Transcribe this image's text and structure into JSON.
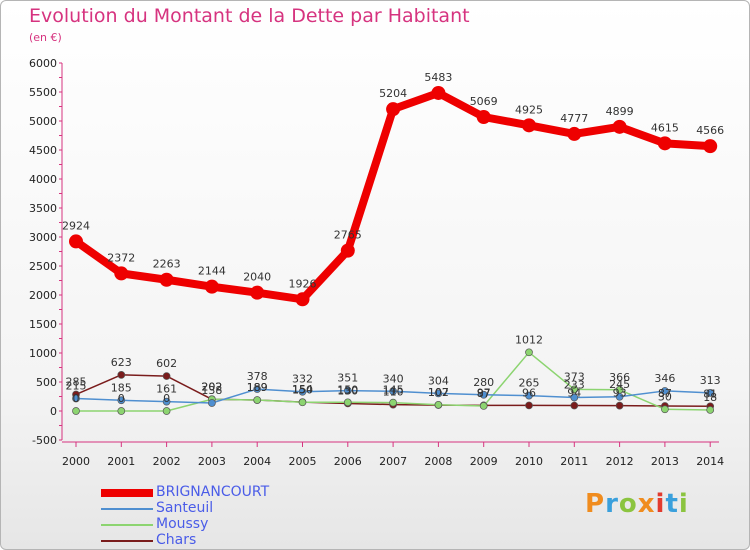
{
  "header": {
    "title": "Evolution du Montant de la Dette par Habitant",
    "unit": "(en €)"
  },
  "logo": {
    "text": "Proxiti",
    "colors": [
      "#f08c1e",
      "#3aa0dc",
      "#8bc43f",
      "#f08c1e",
      "#e23b2e",
      "#3aa0dc",
      "#8bc43f"
    ]
  },
  "chart_data": {
    "type": "line",
    "title": "Evolution du Montant de la Dette par Habitant",
    "ylabel": "(en €)",
    "xlabel": "",
    "ylim": [
      -500,
      6000
    ],
    "yticks": [
      -500,
      0,
      500,
      1000,
      1500,
      2000,
      2500,
      3000,
      3500,
      4000,
      4500,
      5000,
      5500,
      6000
    ],
    "categories": [
      "2000",
      "2001",
      "2002",
      "2003",
      "2004",
      "2005",
      "2006",
      "2007",
      "2008",
      "2009",
      "2010",
      "2011",
      "2012",
      "2013",
      "2014"
    ],
    "grid": false,
    "legend": "bottom-left",
    "series": [
      {
        "name": "BRIGNANCOURT",
        "color": "#ee0000",
        "values": [
          2924,
          2372,
          2263,
          2144,
          2040,
          1926,
          2765,
          5204,
          5483,
          5069,
          4925,
          4777,
          4899,
          4615,
          4566
        ]
      },
      {
        "name": "Santeuil",
        "color": "#4f8fd0",
        "values": [
          215,
          185,
          161,
          138,
          378,
          332,
          351,
          340,
          304,
          280,
          265,
          233,
          245,
          346,
          313
        ]
      },
      {
        "name": "Moussy",
        "color": "#8cd470",
        "values": [
          0,
          0,
          0,
          202,
          189,
          150,
          150,
          145,
          107,
          87,
          1012,
          373,
          366,
          30,
          18
        ]
      },
      {
        "name": "Chars",
        "color": "#7a1c1c",
        "values": [
          285,
          623,
          602,
          202,
          189,
          154,
          130,
          110,
          102,
          97,
          96,
          94,
          93,
          87,
          81
        ]
      }
    ]
  }
}
